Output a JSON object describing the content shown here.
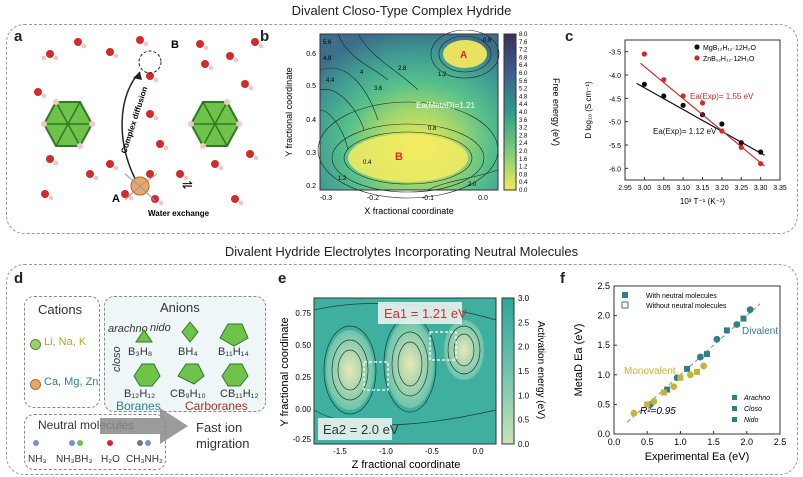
{
  "top": {
    "title": "Divalent Closo-Type Complex Hydride",
    "panel_a": {
      "label": "a",
      "B": "B",
      "A": "A",
      "complex_diffusion": "Complex diffusion",
      "water_exchange": "Water exchange",
      "exchange_symbol": "⇌"
    },
    "panel_b": {
      "label": "b",
      "xlabel": "X fractional coordinate",
      "ylabel": "Y fractional coordinate",
      "cbar_label": "Free energy (eV)",
      "min_A": "A",
      "min_B": "B",
      "ea_label": "Ea(MetaD)=1.21",
      "xticks": [
        "-0.3",
        "-0.2",
        "-0.1",
        "0.0"
      ],
      "yticks": [
        "0.2",
        "0.3",
        "0.4",
        "0.5",
        "0.6"
      ],
      "cbar_ticks": [
        "0.0",
        "0.4",
        "0.8",
        "1.2",
        "1.6",
        "2.0",
        "2.4",
        "2.8",
        "3.2",
        "3.6",
        "4.0",
        "4.4",
        "4.8",
        "5.2",
        "5.6",
        "6.0",
        "6.4",
        "6.8",
        "7.2",
        "7.6",
        "8.0"
      ],
      "contour_labels": [
        "1.2",
        "1.6",
        "2",
        "2.4",
        "2.8",
        "3.2",
        "3.6",
        "4",
        "4.4",
        "4.8",
        "5.6",
        "6.8",
        "0.8",
        "0.4",
        "0.8",
        "1.2",
        "1.6",
        "2.0",
        "2.4",
        "2.8",
        "3.2",
        "0.4",
        "0.8",
        "1.6",
        "2.0",
        "2.4"
      ]
    },
    "panel_c": {
      "label": "c",
      "chart_data": {
        "type": "scatter",
        "xlabel": "10³ T⁻¹ (K⁻¹)",
        "ylabel": "D log₁₀ (S cm⁻¹)",
        "xlim": [
          2.95,
          3.35
        ],
        "ylim": [
          -6.25,
          -3.25
        ],
        "xticks": [
          "2.95",
          "3.00",
          "3.05",
          "3.10",
          "3.15",
          "3.20",
          "3.25",
          "3.30",
          "3.35"
        ],
        "yticks": [
          "-3.5",
          "-4.0",
          "-4.5",
          "-5.0",
          "-5.5",
          "-6.0"
        ],
        "series": [
          {
            "name": "MgB₁₂H₁₂·12H₂O",
            "color": "#111111",
            "x": [
              3.0,
              3.05,
              3.1,
              3.15,
              3.2,
              3.25,
              3.3
            ],
            "y": [
              -4.2,
              -4.45,
              -4.65,
              -4.85,
              -5.05,
              -5.45,
              -5.65
            ],
            "fit": [
              [
                2.98,
                -4.18
              ],
              [
                3.31,
                -5.72
              ]
            ]
          },
          {
            "name": "ZnB₁₂H₁₂·12H₂O",
            "color": "#d42a2a",
            "x": [
              3.0,
              3.05,
              3.1,
              3.15,
              3.2,
              3.25,
              3.3
            ],
            "y": [
              -3.55,
              -4.1,
              -4.45,
              -4.6,
              -5.2,
              -5.55,
              -5.9
            ],
            "fit": [
              [
                2.99,
                -3.75
              ],
              [
                3.31,
                -5.95
              ]
            ]
          }
        ],
        "annotations": [
          "Ea(Exp)= 1.55 eV",
          "Ea(Exp)= 1.12 eV"
        ]
      }
    }
  },
  "bottom": {
    "title": "Divalent Hydride Electrolytes Incorporating Neutral Molecules",
    "panel_d": {
      "label": "d",
      "cations_title": "Cations",
      "cation1": "Li, Na, K",
      "cation2": "Ca, Mg, Zn",
      "anions_title": "Anions",
      "arachno": "arachno",
      "nido": "nido",
      "closo": "closo",
      "b3h8": "B₃H₈",
      "bh4": "BH₄",
      "b11h14": "B₁₁H₁₄",
      "b12h12": "B₁₂H₁₂",
      "cb9h10": "CB₉H₁₀",
      "cb11h12": "CB₁₁H₁₂",
      "boranes": "Boranes",
      "carboranes": "Carboranes",
      "neutral_title": "Neutral molecules",
      "nh3": "NH₃",
      "nh3bh3": "NH₃BH₃",
      "h2o": "H₂O",
      "ch3nh2": "CH₃NH₂",
      "fast_ion": "Fast ion migration"
    },
    "panel_e": {
      "label": "e",
      "xlabel": "Z fractional coordinate",
      "ylabel": "Y fractional coordinate",
      "cbar_label": "Activation energy (eV)",
      "ea1": "Ea1 = 1.21 eV",
      "ea2": "Ea2 = 2.0 eV",
      "xticks": [
        "-1.5",
        "-1.0",
        "-0.5",
        "0.0"
      ],
      "yticks": [
        "-0.25",
        "0.00",
        "0.25",
        "0.50",
        "0.75"
      ],
      "cbar_ticks": [
        "0.0",
        "0.5",
        "1.0",
        "1.5",
        "2.0",
        "2.5",
        "3.0"
      ]
    },
    "panel_f": {
      "label": "f",
      "chart_data": {
        "type": "scatter",
        "xlabel": "Experimental Ea (eV)",
        "ylabel": "MetaD Ea (eV)",
        "xlim": [
          0.0,
          2.5
        ],
        "ylim": [
          0.0,
          2.5
        ],
        "xticks": [
          "0.0",
          "0.5",
          "1.0",
          "1.5",
          "2.0",
          "2.5"
        ],
        "yticks": [
          "0.0",
          "0.5",
          "1.0",
          "1.5",
          "2.0",
          "2.5"
        ],
        "r2": "R²=0.95",
        "group_labels": [
          "Divalent",
          "Monovalent"
        ],
        "legend": [
          "With neutral molecules",
          "Without neutral molecules"
        ],
        "shape_legend": [
          "Arachno",
          "Closo",
          "Nido"
        ],
        "series": [
          {
            "name": "Divalent",
            "color": "#2e7f8a",
            "x": [
              0.55,
              0.8,
              0.95,
              1.1,
              1.3,
              1.4,
              1.55,
              1.7,
              1.85,
              1.95,
              2.05
            ],
            "y": [
              0.5,
              0.75,
              0.95,
              1.1,
              1.3,
              1.35,
              1.6,
              1.75,
              1.85,
              1.95,
              2.1
            ]
          },
          {
            "name": "Monovalent",
            "color": "#c9b23a",
            "x": [
              0.3,
              0.5,
              0.6,
              0.75,
              0.9,
              1.0,
              1.15,
              1.25,
              1.35
            ],
            "y": [
              0.35,
              0.5,
              0.55,
              0.7,
              0.8,
              0.95,
              1.0,
              1.05,
              1.15
            ]
          }
        ]
      }
    }
  },
  "colors": {
    "accent_red": "#d42a2a",
    "teal": "#2e7f8a",
    "olive": "#c9b23a"
  }
}
